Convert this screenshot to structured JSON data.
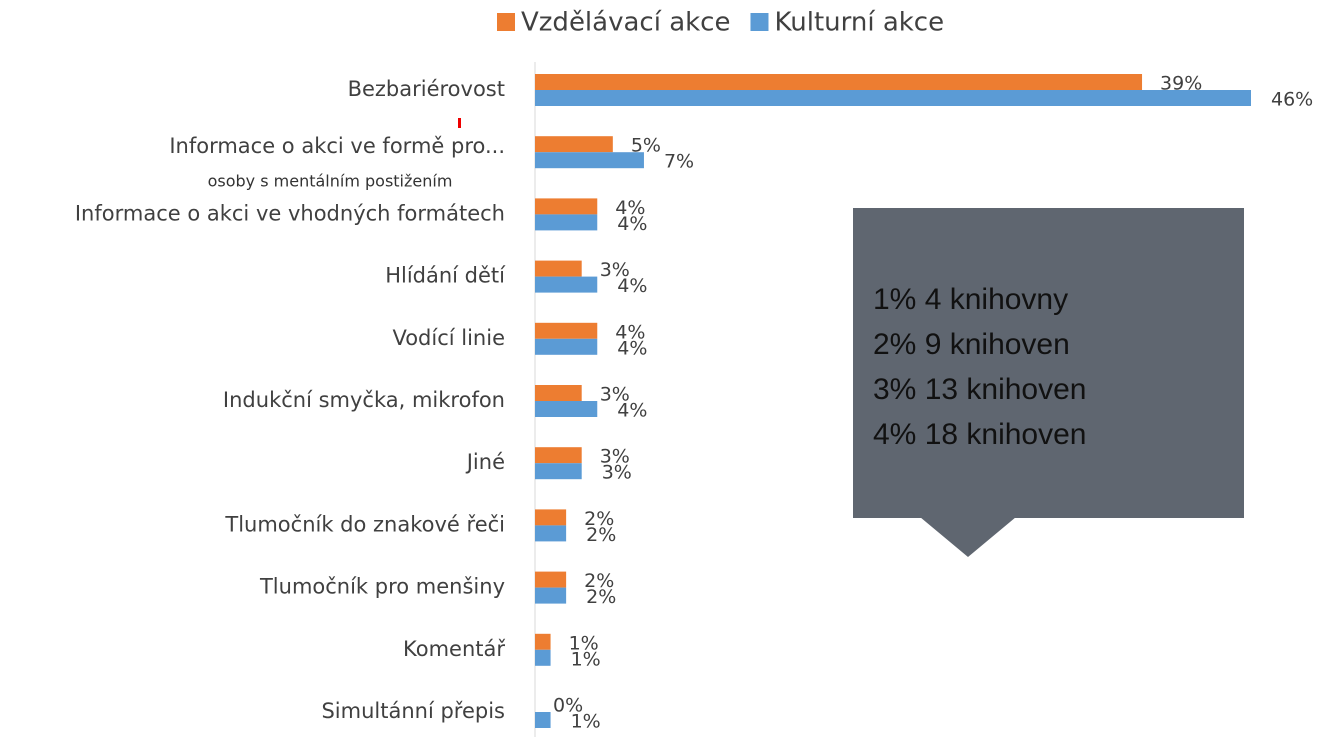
{
  "chart_data": {
    "type": "bar",
    "orientation": "horizontal",
    "categories": [
      "Bezbariérovost",
      "Informace o akci ve formě pro...",
      "Informace o akci ve vhodných formátech",
      "Hlídání dětí",
      "Vodící linie",
      "Indukční smyčka, mikrofon",
      "Jiné",
      "Tlumočník do znakové řeči",
      "Tlumočník pro menšiny",
      "Komentář",
      "Simultánní přepis"
    ],
    "category_note": "osoby s mentálním postižením",
    "series": [
      {
        "name": "Vzdělávací akce",
        "color": "#ed7d31",
        "values": [
          39,
          5,
          4,
          3,
          4,
          3,
          3,
          2,
          2,
          1,
          0
        ],
        "value_labels": [
          "39%",
          "5%",
          "4%",
          "3%",
          "4%",
          "3%",
          "3%",
          "2%",
          "2%",
          "1%",
          "0%"
        ]
      },
      {
        "name": "Kulturní akce",
        "color": "#5b9bd5",
        "values": [
          46,
          7,
          4,
          4,
          4,
          4,
          3,
          2,
          2,
          1,
          1
        ],
        "value_labels": [
          "46%",
          "7%",
          "4%",
          "4%",
          "4%",
          "4%",
          "3%",
          "2%",
          "2%",
          "1%",
          "1%"
        ]
      }
    ],
    "legend": "top",
    "annotation_box": [
      "1% 4 knihovny",
      "2% 9 knihoven",
      "3% 13 knihoven",
      "4% 18 knihoven"
    ]
  }
}
